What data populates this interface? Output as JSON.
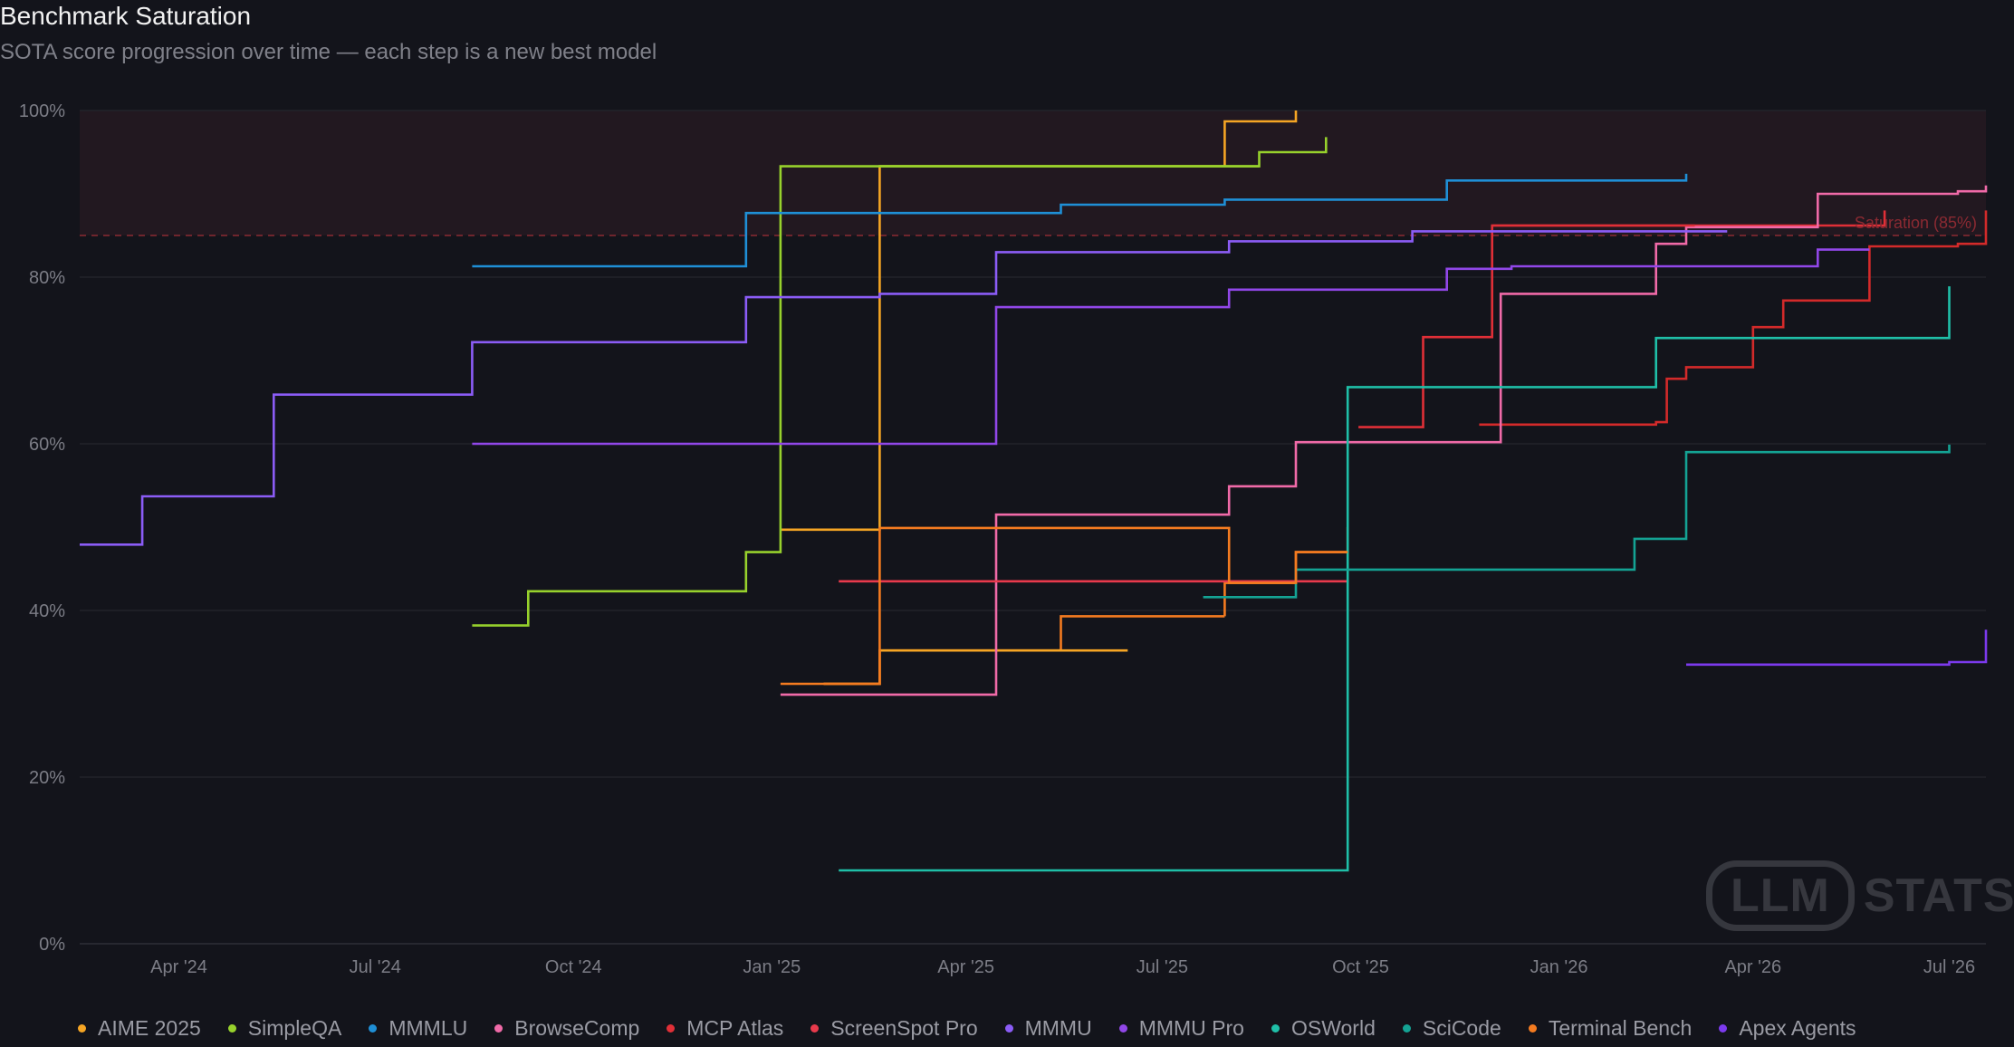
{
  "title": "Benchmark Saturation",
  "subtitle": "SOTA score progression over time — each step is a new best model",
  "watermark": {
    "box": "LLM",
    "text": "STATS"
  },
  "chart_data": {
    "type": "line",
    "step": true,
    "ylim": [
      0,
      100
    ],
    "y_ticks": [
      "0%",
      "20%",
      "40%",
      "60%",
      "80%",
      "100%"
    ],
    "x_ticks": [
      {
        "label": "Apr '24",
        "date": "2024-04-01"
      },
      {
        "label": "Jul '24",
        "date": "2024-07-01"
      },
      {
        "label": "Oct '24",
        "date": "2024-10-01"
      },
      {
        "label": "Jan '25",
        "date": "2025-01-01"
      },
      {
        "label": "Apr '25",
        "date": "2025-04-01"
      },
      {
        "label": "Jul '25",
        "date": "2025-07-01"
      },
      {
        "label": "Oct '25",
        "date": "2025-10-01"
      },
      {
        "label": "Jan '26",
        "date": "2026-01-01"
      },
      {
        "label": "Apr '26",
        "date": "2026-04-01"
      },
      {
        "label": "Jul '26",
        "date": "2026-07-01"
      }
    ],
    "xlim": [
      "2024-02-15",
      "2026-07-18"
    ],
    "threshold": {
      "value": 85,
      "label": "Saturation (85%)",
      "color": "#8b2a32"
    },
    "series": [
      {
        "name": "AIME 2025",
        "color": "#f5a524",
        "points": [
          [
            "2025-01-25",
            31.2
          ],
          [
            "2025-02-20",
            31.2
          ],
          [
            "2025-02-20",
            35.2
          ],
          [
            "2025-06-15",
            35.2
          ]
        ]
      },
      {
        "name": "SimpleQA",
        "color": "#97d12c",
        "points": [
          [
            "2024-08-15",
            38.2
          ],
          [
            "2024-09-10",
            38.2
          ],
          [
            "2024-09-10",
            42.3
          ],
          [
            "2024-12-20",
            42.3
          ],
          [
            "2024-12-20",
            47.0
          ],
          [
            "2025-01-05",
            47.0
          ],
          [
            "2025-01-05",
            93.3
          ],
          [
            "2025-08-15",
            93.3
          ],
          [
            "2025-08-15",
            95.0
          ],
          [
            "2025-09-15",
            95.0
          ],
          [
            "2025-09-15",
            96.8
          ]
        ]
      },
      {
        "name": "MMMLU",
        "color": "#1f8fd6",
        "points": [
          [
            "2024-08-15",
            81.3
          ],
          [
            "2024-12-20",
            81.3
          ],
          [
            "2024-12-20",
            87.7
          ],
          [
            "2025-05-15",
            87.7
          ],
          [
            "2025-05-15",
            88.7
          ],
          [
            "2025-07-30",
            88.7
          ],
          [
            "2025-07-30",
            89.3
          ],
          [
            "2025-11-10",
            89.3
          ],
          [
            "2025-11-10",
            91.6
          ],
          [
            "2026-03-01",
            91.6
          ],
          [
            "2026-03-01",
            92.4
          ]
        ]
      },
      {
        "name": "BrowseComp",
        "color": "#f06aa8",
        "points": [
          [
            "2025-01-05",
            29.9
          ],
          [
            "2025-04-15",
            29.9
          ],
          [
            "2025-04-15",
            51.5
          ],
          [
            "2025-08-01",
            51.5
          ],
          [
            "2025-08-01",
            54.9
          ],
          [
            "2025-09-01",
            54.9
          ],
          [
            "2025-09-01",
            60.2
          ],
          [
            "2025-12-05",
            60.2
          ],
          [
            "2025-12-05",
            78.0
          ],
          [
            "2026-02-15",
            78.0
          ],
          [
            "2026-02-15",
            84.0
          ],
          [
            "2026-03-01",
            84.0
          ],
          [
            "2026-03-01",
            86.0
          ],
          [
            "2026-05-01",
            86.0
          ],
          [
            "2026-05-01",
            90.0
          ],
          [
            "2026-07-05",
            90.0
          ],
          [
            "2026-07-05",
            90.3
          ],
          [
            "2026-07-18",
            90.3
          ],
          [
            "2026-07-18",
            91.0
          ]
        ]
      },
      {
        "name": "MCP Atlas",
        "color": "#e02f37",
        "points": [
          [
            "2025-09-30",
            62.0
          ],
          [
            "2025-10-30",
            62.0
          ],
          [
            "2025-10-30",
            72.8
          ],
          [
            "2025-12-01",
            72.8
          ],
          [
            "2025-12-01",
            86.2
          ],
          [
            "2026-03-05",
            86.2
          ],
          [
            "2026-03-05",
            86.2
          ]
        ]
      },
      {
        "name": "ScreenSpot Pro",
        "color": "#e83a4c",
        "points": [
          [
            "2025-02-01",
            43.5
          ],
          [
            "2025-09-25",
            43.5
          ]
        ]
      },
      {
        "name": "MMMU",
        "color": "#8b5cf6",
        "points": [
          [
            "2024-02-15",
            47.9
          ],
          [
            "2024-03-15",
            47.9
          ],
          [
            "2024-03-15",
            53.7
          ],
          [
            "2024-05-15",
            53.7
          ],
          [
            "2024-05-15",
            65.9
          ],
          [
            "2024-08-15",
            65.9
          ],
          [
            "2024-08-15",
            72.2
          ],
          [
            "2024-12-20",
            72.2
          ],
          [
            "2024-12-20",
            77.6
          ],
          [
            "2025-02-20",
            77.6
          ],
          [
            "2025-02-20",
            78.0
          ],
          [
            "2025-04-15",
            78.0
          ],
          [
            "2025-04-15",
            83.0
          ],
          [
            "2025-08-01",
            83.0
          ],
          [
            "2025-08-01",
            84.3
          ],
          [
            "2025-10-25",
            84.3
          ],
          [
            "2025-10-25",
            85.5
          ],
          [
            "2026-03-20",
            85.5
          ]
        ]
      },
      {
        "name": "MMMU Pro",
        "color": "#9147e8",
        "points": [
          [
            "2024-08-15",
            60.0
          ],
          [
            "2025-04-15",
            60.0
          ],
          [
            "2025-04-15",
            76.4
          ],
          [
            "2025-08-01",
            76.4
          ],
          [
            "2025-08-01",
            78.5
          ],
          [
            "2025-11-10",
            78.5
          ],
          [
            "2025-11-10",
            81.0
          ],
          [
            "2025-12-10",
            81.0
          ],
          [
            "2025-12-10",
            81.3
          ],
          [
            "2026-05-01",
            81.3
          ],
          [
            "2026-05-01",
            83.3
          ],
          [
            "2026-05-25",
            83.3
          ]
        ]
      },
      {
        "name": "OSWorld",
        "color": "#1fbfa8",
        "points": [
          [
            "2025-02-01",
            8.8
          ],
          [
            "2025-09-25",
            8.8
          ],
          [
            "2025-09-25",
            66.8
          ],
          [
            "2026-02-15",
            66.8
          ],
          [
            "2026-02-15",
            72.7
          ],
          [
            "2026-07-01",
            72.7
          ],
          [
            "2026-07-01",
            78.9
          ]
        ]
      },
      {
        "name": "SciCode",
        "color": "#14a394",
        "points": [
          [
            "2025-07-20",
            41.6
          ],
          [
            "2025-09-01",
            41.6
          ],
          [
            "2025-09-01",
            44.9
          ],
          [
            "2026-02-05",
            44.9
          ],
          [
            "2026-02-05",
            48.6
          ],
          [
            "2026-03-01",
            48.6
          ],
          [
            "2026-03-01",
            59.0
          ],
          [
            "2026-07-01",
            59.0
          ],
          [
            "2026-07-01",
            59.9
          ]
        ]
      },
      {
        "name": "Terminal Bench",
        "color": "#f47b20",
        "points": [
          [
            "2025-01-05",
            31.2
          ],
          [
            "2025-02-20",
            31.2
          ],
          [
            "2025-02-20",
            49.9
          ],
          [
            "2025-08-01",
            49.9
          ],
          [
            "2025-08-01",
            43.3
          ],
          [
            "2025-09-01",
            43.3
          ],
          [
            "2025-09-01",
            47.0
          ],
          [
            "2025-09-25",
            47.0
          ],
          [
            "2025-09-25",
            47.0
          ]
        ]
      },
      {
        "name": "Apex Agents",
        "color": "#7c3aed",
        "points": [
          [
            "2026-03-01",
            33.5
          ],
          [
            "2026-07-01",
            33.5
          ],
          [
            "2026-07-01",
            33.8
          ],
          [
            "2026-07-18",
            33.8
          ],
          [
            "2026-07-18",
            37.7
          ]
        ]
      }
    ],
    "extra_segments": [
      {
        "series": "AIME 2025",
        "color": "#f5a524",
        "points": [
          [
            "2025-01-05",
            49.7
          ],
          [
            "2025-02-20",
            49.7
          ],
          [
            "2025-02-20",
            93.3
          ],
          [
            "2025-07-30",
            93.3
          ],
          [
            "2025-07-30",
            98.7
          ],
          [
            "2025-09-01",
            98.7
          ],
          [
            "2025-09-01",
            100
          ]
        ]
      },
      {
        "series": "Terminal Bench",
        "color": "#f47b20",
        "points": [
          [
            "2025-07-30",
            39.3
          ],
          [
            "2025-07-30",
            43.3
          ],
          [
            "2025-09-01",
            43.3
          ],
          [
            "2025-09-01",
            47.0
          ],
          [
            "2025-09-25",
            47.0
          ],
          [
            "2025-09-25",
            50.0
          ]
        ]
      },
      {
        "series": "Terminal Bench",
        "color": "#f47b20",
        "points": [
          [
            "2025-01-25",
            31.2
          ],
          [
            "2025-02-20",
            31.2
          ],
          [
            "2025-02-20",
            35.2
          ],
          [
            "2025-05-15",
            35.2
          ],
          [
            "2025-05-15",
            39.3
          ],
          [
            "2025-07-30",
            39.3
          ]
        ]
      },
      {
        "series": "MCP Atlas",
        "color": "#d32a2a",
        "points": [
          [
            "2025-11-25",
            62.3
          ],
          [
            "2026-02-15",
            62.3
          ],
          [
            "2026-02-15",
            62.6
          ],
          [
            "2026-02-20",
            62.6
          ],
          [
            "2026-02-20",
            67.8
          ],
          [
            "2026-03-01",
            67.8
          ],
          [
            "2026-03-01",
            69.2
          ],
          [
            "2026-04-01",
            69.2
          ],
          [
            "2026-04-01",
            74.0
          ],
          [
            "2026-04-15",
            74.0
          ],
          [
            "2026-04-15",
            77.2
          ],
          [
            "2026-05-25",
            77.2
          ],
          [
            "2026-05-25",
            83.7
          ],
          [
            "2026-07-05",
            83.7
          ],
          [
            "2026-07-05",
            84.0
          ],
          [
            "2026-07-18",
            84.0
          ],
          [
            "2026-07-18",
            88.0
          ]
        ]
      },
      {
        "series": "MCP Atlas",
        "color": "#e02f37",
        "points": [
          [
            "2025-12-01",
            86.2
          ],
          [
            "2026-04-01",
            86.2
          ],
          [
            "2026-04-01",
            86.2
          ],
          [
            "2026-05-10",
            86.2
          ],
          [
            "2026-05-10",
            86.2
          ],
          [
            "2026-06-01",
            86.2
          ],
          [
            "2026-06-01",
            88.0
          ]
        ]
      },
      {
        "series": "SimpleQA",
        "color": "#97d12c",
        "points": [
          [
            "2025-02-20",
            93.3
          ],
          [
            "2025-08-15",
            93.3
          ]
        ]
      }
    ]
  }
}
